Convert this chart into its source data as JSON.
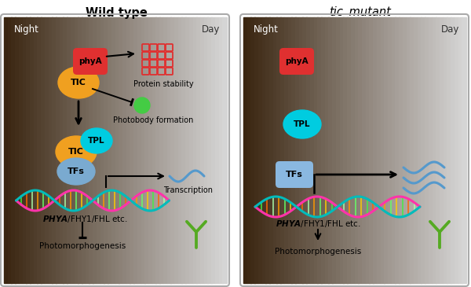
{
  "title_left": "Wild type",
  "title_right_italic": "tic",
  "title_right_normal": " mutant",
  "colors": {
    "phyA": "#e03030",
    "TIC": "#f0a020",
    "TPL": "#00cce0",
    "TFs_left": "#7aaad0",
    "TFs_right": "#8ab8e0",
    "photobody_green": "#44cc44",
    "background_dark": "#3a2510",
    "background_light": "#ffffff",
    "border": "#999999",
    "wave_blue": "#5599cc",
    "seedling_green": "#55aa22",
    "dna_pink": "#ff44bb",
    "dna_teal": "#00bbbb"
  }
}
